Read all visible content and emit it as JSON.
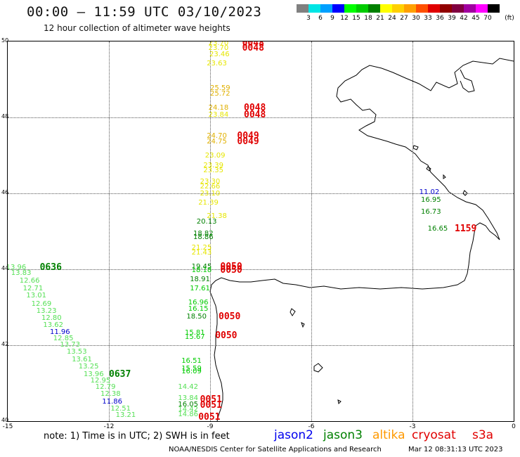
{
  "header": {
    "title": "00:00 – 11:59 UTC 03/10/2023",
    "subtitle": "12 hour collection of altimeter wave heights"
  },
  "legend": {
    "unit": "(ft)",
    "bins": [
      {
        "label": "3",
        "color": "#808080"
      },
      {
        "label": "6",
        "color": "#00e5e5"
      },
      {
        "label": "9",
        "color": "#00a0ff"
      },
      {
        "label": "12",
        "color": "#0000ff"
      },
      {
        "label": "15",
        "color": "#00ff00"
      },
      {
        "label": "18",
        "color": "#00cc00"
      },
      {
        "label": "21",
        "color": "#008000"
      },
      {
        "label": "24",
        "color": "#ffff00"
      },
      {
        "label": "27",
        "color": "#ffd000"
      },
      {
        "label": "30",
        "color": "#ffa000"
      },
      {
        "label": "33",
        "color": "#ff5000"
      },
      {
        "label": "36",
        "color": "#e00000"
      },
      {
        "label": "39",
        "color": "#900000"
      },
      {
        "label": "42",
        "color": "#800040"
      },
      {
        "label": "45",
        "color": "#a000a0"
      },
      {
        "label": "70",
        "color": "#ff00ff"
      },
      {
        "label": "",
        "color": "#000000"
      }
    ]
  },
  "map": {
    "lon_range": [
      -15,
      0
    ],
    "lat_range": [
      40,
      50
    ],
    "lon_ticks": [
      "-15",
      "-12",
      "-9",
      "-6",
      "-3",
      "0"
    ],
    "lat_ticks": [
      "50",
      "48",
      "46",
      "44",
      "42",
      "40"
    ],
    "observations": [
      {
        "t": "23.70",
        "lon": -9.05,
        "lat": 49.95,
        "c": "#e6e600"
      },
      {
        "t": "23.70",
        "lon": -9.05,
        "lat": 49.82,
        "c": "#e6e600"
      },
      {
        "t": "23.46",
        "lon": -9.02,
        "lat": 49.65,
        "c": "#e6e600"
      },
      {
        "t": "23.63",
        "lon": -9.1,
        "lat": 49.4,
        "c": "#e6e600"
      },
      {
        "t": "25.59",
        "lon": -9.0,
        "lat": 48.76,
        "c": "#e0b000"
      },
      {
        "t": "25.72",
        "lon": -9.0,
        "lat": 48.62,
        "c": "#e0b000"
      },
      {
        "t": "24.18",
        "lon": -9.05,
        "lat": 48.25,
        "c": "#e0b000"
      },
      {
        "t": "23.84",
        "lon": -9.05,
        "lat": 48.05,
        "c": "#e6e600"
      },
      {
        "t": "24.70",
        "lon": -9.1,
        "lat": 47.5,
        "c": "#e0b000"
      },
      {
        "t": "24.75",
        "lon": -9.1,
        "lat": 47.35,
        "c": "#e0b000"
      },
      {
        "t": "23.09",
        "lon": -9.15,
        "lat": 46.98,
        "c": "#e6e600"
      },
      {
        "t": "23.39",
        "lon": -9.2,
        "lat": 46.72,
        "c": "#e6e600"
      },
      {
        "t": "23.35",
        "lon": -9.2,
        "lat": 46.6,
        "c": "#e6e600"
      },
      {
        "t": "23.30",
        "lon": -9.3,
        "lat": 46.3,
        "c": "#e6e600"
      },
      {
        "t": "22.66",
        "lon": -9.3,
        "lat": 46.17,
        "c": "#e6e600"
      },
      {
        "t": "23.10",
        "lon": -9.3,
        "lat": 45.98,
        "c": "#e6e600"
      },
      {
        "t": "21.39",
        "lon": -9.35,
        "lat": 45.75,
        "c": "#e6e600"
      },
      {
        "t": "21.38",
        "lon": -9.1,
        "lat": 45.38,
        "c": "#e6e600"
      },
      {
        "t": "20.13",
        "lon": -9.4,
        "lat": 45.25,
        "c": "#008000"
      },
      {
        "t": "18.82",
        "lon": -9.5,
        "lat": 44.92,
        "c": "#008000"
      },
      {
        "t": "18.86",
        "lon": -9.5,
        "lat": 44.84,
        "c": "#008000"
      },
      {
        "t": "21.25",
        "lon": -9.55,
        "lat": 44.55,
        "c": "#e6e600"
      },
      {
        "t": "21.43",
        "lon": -9.55,
        "lat": 44.43,
        "c": "#e6e600"
      },
      {
        "t": "19.45",
        "lon": -9.55,
        "lat": 44.06,
        "c": "#008000"
      },
      {
        "t": "18.18",
        "lon": -9.55,
        "lat": 43.97,
        "c": "#00cc00"
      },
      {
        "t": "18.91",
        "lon": -9.6,
        "lat": 43.73,
        "c": "#008000"
      },
      {
        "t": "17.61",
        "lon": -9.6,
        "lat": 43.48,
        "c": "#00cc00"
      },
      {
        "t": "16.96",
        "lon": -9.65,
        "lat": 43.12,
        "c": "#00cc00"
      },
      {
        "t": "16.15",
        "lon": -9.65,
        "lat": 42.95,
        "c": "#00cc00"
      },
      {
        "t": "18.50",
        "lon": -9.7,
        "lat": 42.75,
        "c": "#008000"
      },
      {
        "t": "15.81",
        "lon": -9.75,
        "lat": 42.32,
        "c": "#00cc00"
      },
      {
        "t": "15.67",
        "lon": -9.75,
        "lat": 42.2,
        "c": "#00cc00"
      },
      {
        "t": "16.51",
        "lon": -9.85,
        "lat": 41.58,
        "c": "#00cc00"
      },
      {
        "t": "15.59",
        "lon": -9.85,
        "lat": 41.37,
        "c": "#00cc00"
      },
      {
        "t": "16.09",
        "lon": -9.85,
        "lat": 41.3,
        "c": "#00cc00"
      },
      {
        "t": "14.42",
        "lon": -9.95,
        "lat": 40.88,
        "c": "#55e055"
      },
      {
        "t": "13.84",
        "lon": -9.95,
        "lat": 40.6,
        "c": "#55e055"
      },
      {
        "t": "16.05",
        "lon": -9.95,
        "lat": 40.42,
        "c": "#008000"
      },
      {
        "t": "14.42",
        "lon": -9.95,
        "lat": 40.3,
        "c": "#55e055"
      },
      {
        "t": "14.86",
        "lon": -9.95,
        "lat": 40.17,
        "c": "#55e055"
      },
      {
        "t": "11.02",
        "lon": -2.8,
        "lat": 46.02,
        "c": "#0000cc"
      },
      {
        "t": "16.95",
        "lon": -2.75,
        "lat": 45.82,
        "c": "#008000"
      },
      {
        "t": "16.73",
        "lon": -2.75,
        "lat": 45.5,
        "c": "#008000"
      },
      {
        "t": "16.65",
        "lon": -2.55,
        "lat": 45.06,
        "c": "#008000"
      },
      {
        "t": "13.96",
        "lon": -15.05,
        "lat": 44.03,
        "c": "#55e055"
      },
      {
        "t": "13.83",
        "lon": -14.9,
        "lat": 43.88,
        "c": "#55e055"
      },
      {
        "t": "12.66",
        "lon": -14.65,
        "lat": 43.69,
        "c": "#55e055"
      },
      {
        "t": "12.71",
        "lon": -14.55,
        "lat": 43.49,
        "c": "#55e055"
      },
      {
        "t": "13.01",
        "lon": -14.45,
        "lat": 43.29,
        "c": "#55e055"
      },
      {
        "t": "12.69",
        "lon": -14.3,
        "lat": 43.08,
        "c": "#55e055"
      },
      {
        "t": "13.23",
        "lon": -14.15,
        "lat": 42.88,
        "c": "#55e055"
      },
      {
        "t": "12.80",
        "lon": -14.0,
        "lat": 42.7,
        "c": "#55e055"
      },
      {
        "t": "13.62",
        "lon": -13.95,
        "lat": 42.51,
        "c": "#55e055"
      },
      {
        "t": "11.96",
        "lon": -13.75,
        "lat": 42.34,
        "c": "#0000cc"
      },
      {
        "t": "12.85",
        "lon": -13.65,
        "lat": 42.16,
        "c": "#55e055"
      },
      {
        "t": "13.73",
        "lon": -13.45,
        "lat": 42.0,
        "c": "#55e055"
      },
      {
        "t": "13.53",
        "lon": -13.25,
        "lat": 41.81,
        "c": "#55e055"
      },
      {
        "t": "13.61",
        "lon": -13.1,
        "lat": 41.61,
        "c": "#55e055"
      },
      {
        "t": "13.25",
        "lon": -12.9,
        "lat": 41.42,
        "c": "#55e055"
      },
      {
        "t": "13.96",
        "lon": -12.75,
        "lat": 41.22,
        "c": "#55e055"
      },
      {
        "t": "12.95",
        "lon": -12.55,
        "lat": 41.05,
        "c": "#55e055"
      },
      {
        "t": "12.79",
        "lon": -12.4,
        "lat": 40.88,
        "c": "#55e055"
      },
      {
        "t": "12.38",
        "lon": -12.25,
        "lat": 40.7,
        "c": "#55e055"
      },
      {
        "t": "11.86",
        "lon": -12.2,
        "lat": 40.5,
        "c": "#0000cc"
      },
      {
        "t": "12.51",
        "lon": -11.95,
        "lat": 40.32,
        "c": "#55e055"
      },
      {
        "t": "13.21",
        "lon": -11.8,
        "lat": 40.15,
        "c": "#55e055"
      }
    ],
    "passes": [
      {
        "t": "0048",
        "lon": -8.05,
        "lat": 49.95,
        "c": "#e00000"
      },
      {
        "t": "0048",
        "lon": -8.05,
        "lat": 49.82,
        "c": "#e00000"
      },
      {
        "t": "0048",
        "lon": -8.0,
        "lat": 48.25,
        "c": "#e00000"
      },
      {
        "t": "0048",
        "lon": -8.0,
        "lat": 48.05,
        "c": "#e00000"
      },
      {
        "t": "0049",
        "lon": -8.2,
        "lat": 47.5,
        "c": "#e00000"
      },
      {
        "t": "0049",
        "lon": -8.2,
        "lat": 47.35,
        "c": "#e00000"
      },
      {
        "t": "0050",
        "lon": -8.7,
        "lat": 44.06,
        "c": "#e00000"
      },
      {
        "t": "0050",
        "lon": -8.7,
        "lat": 43.97,
        "c": "#e00000"
      },
      {
        "t": "0050",
        "lon": -8.75,
        "lat": 42.75,
        "c": "#e00000"
      },
      {
        "t": "0050",
        "lon": -8.85,
        "lat": 42.25,
        "c": "#e00000"
      },
      {
        "t": "0051",
        "lon": -9.3,
        "lat": 40.55,
        "c": "#e00000"
      },
      {
        "t": "0051",
        "lon": -9.3,
        "lat": 40.4,
        "c": "#e00000"
      },
      {
        "t": "0051",
        "lon": -9.35,
        "lat": 40.1,
        "c": "#e00000"
      },
      {
        "t": "1159",
        "lon": -1.75,
        "lat": 45.06,
        "c": "#e00000"
      },
      {
        "t": "0636",
        "lon": -14.05,
        "lat": 44.03,
        "c": "#008000"
      },
      {
        "t": "0637",
        "lon": -12.0,
        "lat": 41.22,
        "c": "#008000"
      }
    ]
  },
  "footer": {
    "note": "note:  1) Time is in UTC;  2) SWH is in feet",
    "satellites": [
      {
        "name": "jason2",
        "color": "#0000ee"
      },
      {
        "name": "jason3",
        "color": "#008000"
      },
      {
        "name": "altika",
        "color": "#ff9900"
      },
      {
        "name": "cryosat",
        "color": "#e00000"
      },
      {
        "name": "s3a",
        "color": "#e00000"
      }
    ],
    "credit": "NOAA/NESDIS Center for Satellite Applications and Research",
    "timestamp": "Mar 12 08:31:13 UTC 2023"
  }
}
